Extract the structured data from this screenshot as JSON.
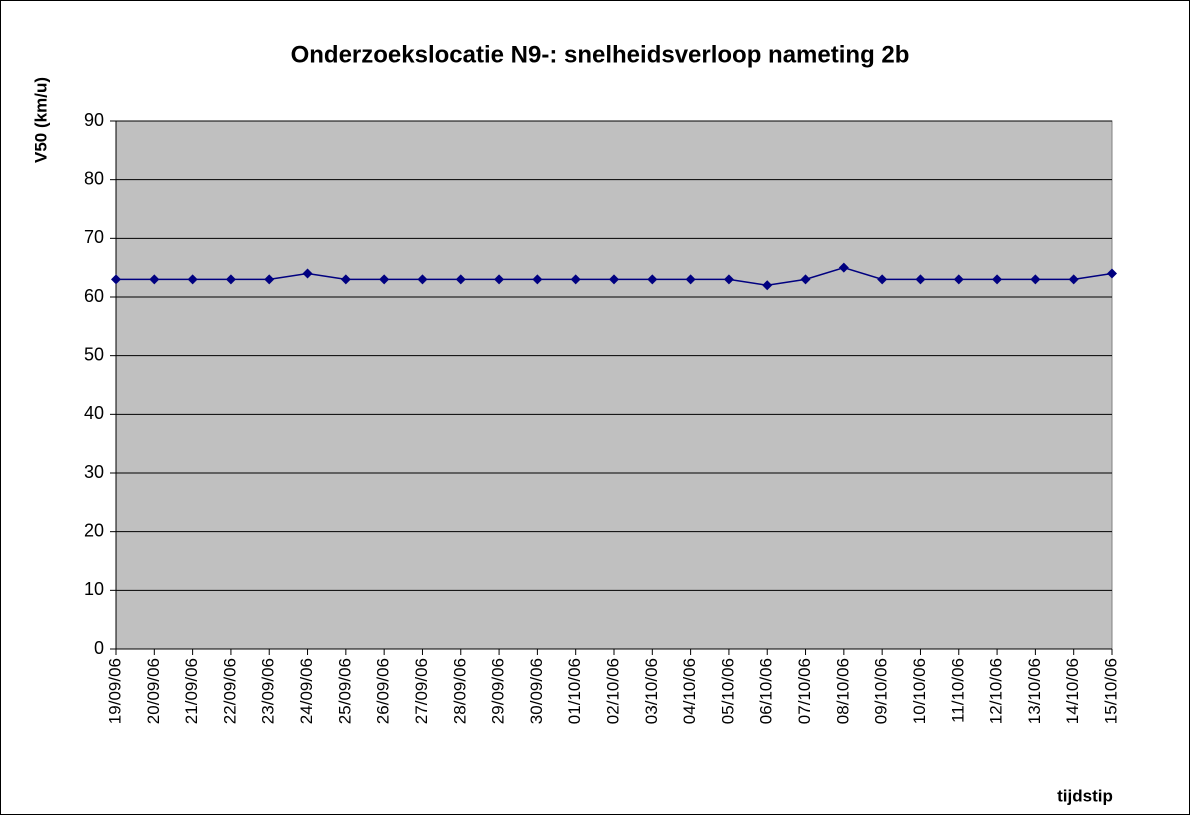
{
  "chart_data": {
    "type": "line",
    "title": "Onderzoekslocatie N9-: snelheidsverloop nameting 2b",
    "ylabel": "V50 (km/u)",
    "xlabel": "tijdstip",
    "categories": [
      "19/09/06",
      "20/09/06",
      "21/09/06",
      "22/09/06",
      "23/09/06",
      "24/09/06",
      "25/09/06",
      "26/09/06",
      "27/09/06",
      "28/09/06",
      "29/09/06",
      "30/09/06",
      "01/10/06",
      "02/10/06",
      "03/10/06",
      "04/10/06",
      "05/10/06",
      "06/10/06",
      "07/10/06",
      "08/10/06",
      "09/10/06",
      "10/10/06",
      "11/10/06",
      "12/10/06",
      "13/10/06",
      "14/10/06",
      "15/10/06"
    ],
    "values": [
      63,
      63,
      63,
      63,
      63,
      64,
      63,
      63,
      63,
      63,
      63,
      63,
      63,
      63,
      63,
      63,
      63,
      62,
      63,
      65,
      63,
      63,
      63,
      63,
      63,
      63,
      64
    ],
    "color": "#000080",
    "ylim": [
      0,
      90
    ],
    "yticks": [
      0,
      10,
      20,
      30,
      40,
      50,
      60,
      70,
      80,
      90
    ],
    "grid": true
  }
}
